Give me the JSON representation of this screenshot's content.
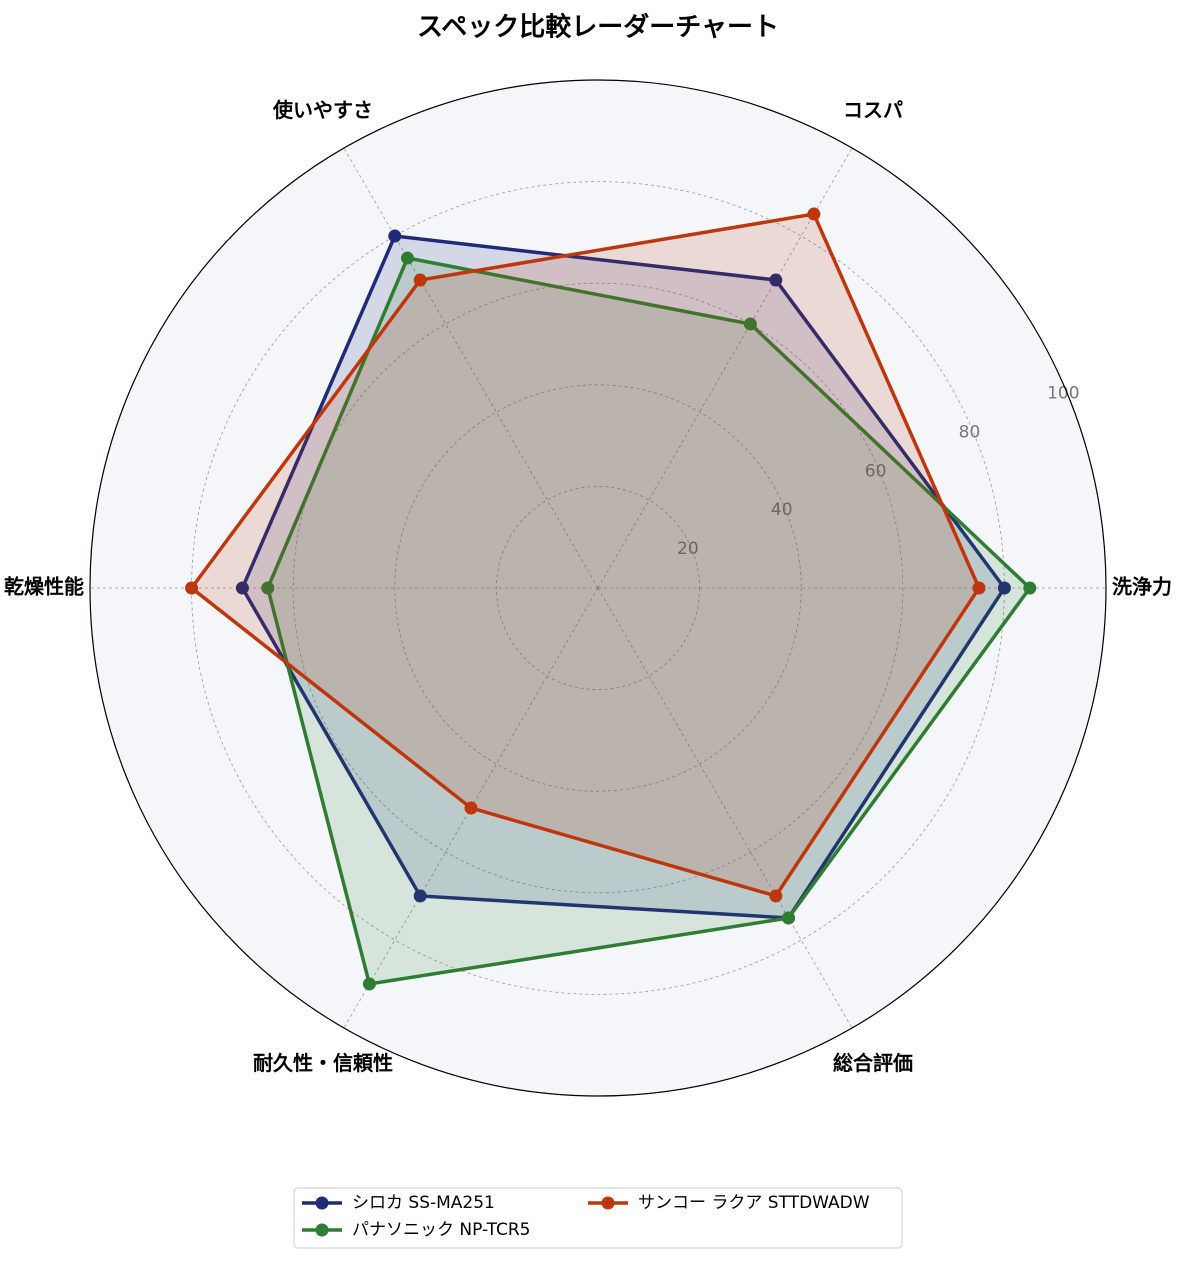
{
  "chart_data": {
    "type": "radar",
    "title": "スペック比較レーダーチャート",
    "categories": [
      "洗浄力",
      "コスパ",
      "使いやすさ",
      "乾燥性能",
      "耐久性・信頼性",
      "総合評価"
    ],
    "series": [
      {
        "name": "シロカ SS-MA251",
        "color": "#1f2a7a",
        "values": [
          80,
          70,
          80,
          70,
          70,
          75
        ]
      },
      {
        "name": "パナソニック NP-TCR5",
        "color": "#2e7d32",
        "values": [
          85,
          60,
          75,
          65,
          90,
          75
        ]
      },
      {
        "name": "サンコー ラクア STTDWADW",
        "color": "#bf360c",
        "values": [
          75,
          85,
          70,
          80,
          50,
          70
        ]
      }
    ],
    "ylim": [
      0,
      100
    ],
    "yticks": [
      20,
      40,
      60,
      80,
      100
    ],
    "grid": true,
    "legend": "bottom"
  }
}
